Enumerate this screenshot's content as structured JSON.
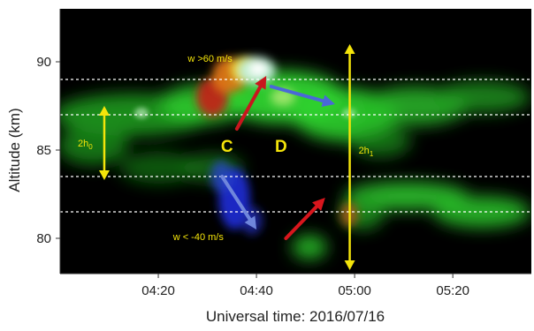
{
  "chart_data": {
    "type": "heatmap",
    "title": "",
    "xlabel": "Universal time: 2016/07/16",
    "ylabel": "Altitude (km)",
    "x_ticks": [
      "04:20",
      "04:40",
      "05:00",
      "05:20"
    ],
    "x_tick_minutes": [
      260,
      280,
      300,
      320
    ],
    "xlim_minutes": [
      240,
      336
    ],
    "y_ticks": [
      80,
      85,
      90
    ],
    "ylim": [
      78,
      93
    ],
    "dashed_lines_km": [
      89.0,
      87.0,
      83.5,
      81.5
    ],
    "double_arrows": [
      {
        "label": "2h0",
        "label_main": "2h",
        "label_sub": "0",
        "x_min": 249,
        "y1_km": 87.5,
        "y2_km": 83.3
      },
      {
        "label": "2h1",
        "label_main": "2h",
        "label_sub": "1",
        "x_min": 299,
        "y1_km": 91.0,
        "y2_km": 78.2
      }
    ],
    "annotations": [
      {
        "text": "w >60 m/s",
        "x_min": 266,
        "y_km": 90.0
      },
      {
        "text": "w < -40  m/s",
        "x_min": 263,
        "y_km": 79.9
      },
      {
        "text": "C",
        "x_min": 274,
        "y_km": 84.9
      },
      {
        "text": "D",
        "x_min": 285,
        "y_km": 84.9
      }
    ],
    "arrows": [
      {
        "color": "#c8161d",
        "from": [
          276,
          86.2
        ],
        "to": [
          282,
          89.2
        ]
      },
      {
        "color": "#4a68d8",
        "from": [
          283,
          88.6
        ],
        "to": [
          296,
          87.6
        ]
      },
      {
        "color": "#6f86dc",
        "from": [
          273,
          83.5
        ],
        "to": [
          280,
          80.5
        ]
      },
      {
        "color": "#d8161d",
        "from": [
          286,
          80.0
        ],
        "to": [
          294,
          82.3
        ]
      }
    ],
    "colors": {
      "background": "#000000",
      "dashed_line": "#ffffff",
      "double_arrow": "#f4e40a",
      "text_annotation": "#f4e40a",
      "emission_green": "#2fd32f",
      "emission_red": "#d8301a",
      "emission_blue": "#2a3fd6",
      "emission_white": "#e8fff0"
    }
  }
}
